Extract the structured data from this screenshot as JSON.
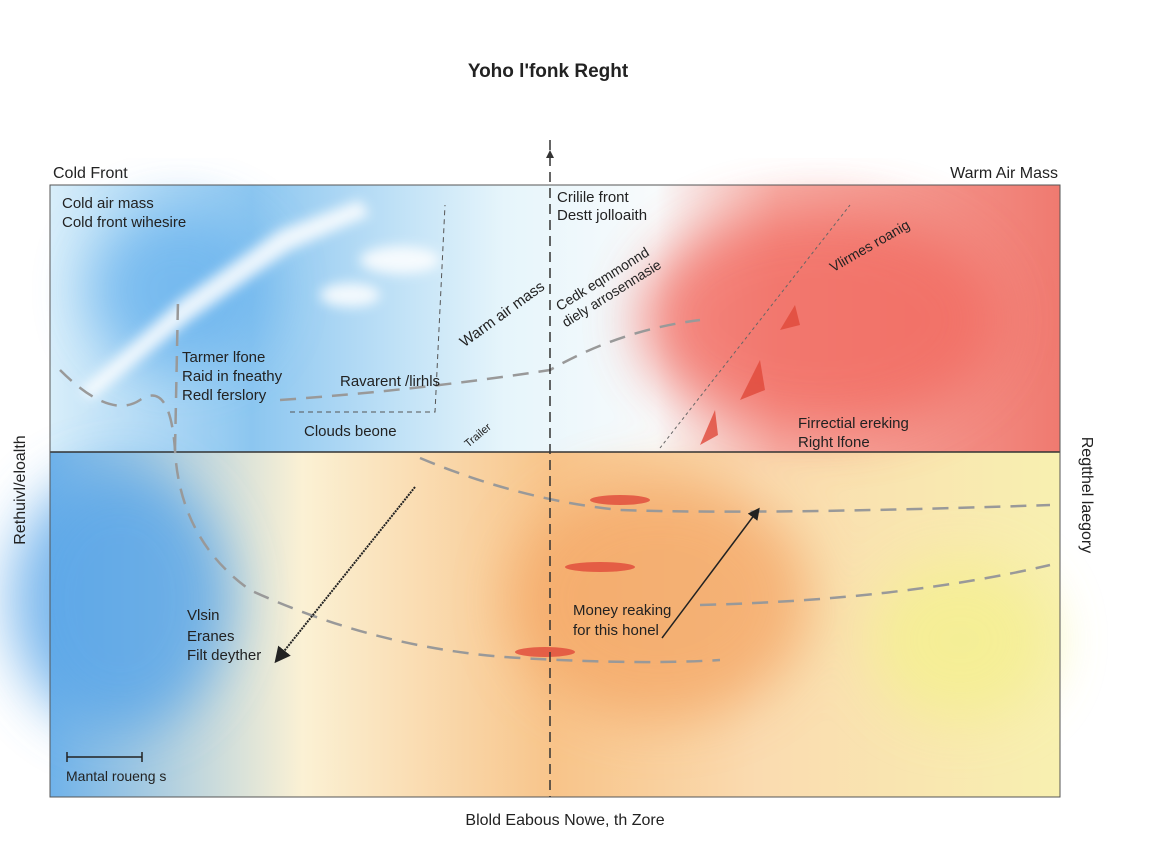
{
  "header": {
    "title": "Yoho l'fonk Reght"
  },
  "corners": {
    "left": "Cold Front",
    "right": "Warm Air Mass"
  },
  "axes": {
    "left": "Rethuivl/eloalth",
    "right": "Regtthel laegory",
    "bottom": "Blold Eabous Nowe, th Zore"
  },
  "labels": [
    {
      "lines": [
        "Cold air mass",
        "Cold front wihesire"
      ]
    },
    {
      "lines": [
        "Crilile front",
        "Destt jolloaith"
      ]
    },
    {
      "lines": [
        "Tarmer lfone",
        "Raid in fneathy",
        "Redl ferslory"
      ]
    },
    {
      "lines": [
        "Ravarent /lirhls"
      ]
    },
    {
      "lines": [
        "Clouds beone"
      ]
    },
    {
      "lines": [
        "Firrectial ereking",
        "Right lfone"
      ]
    },
    {
      "lines": [
        "Vlsin",
        "Eranes",
        "Filt deyther"
      ]
    },
    {
      "lines": [
        "Money reaking",
        "for this honel"
      ]
    },
    {
      "lines": [
        "Mantal roueng s"
      ]
    }
  ],
  "rotated": [
    "Warm air mass",
    "Cedk eqmmonnd",
    "diely arrosennasie",
    "Vlirmes roanig",
    "Trailer"
  ]
}
